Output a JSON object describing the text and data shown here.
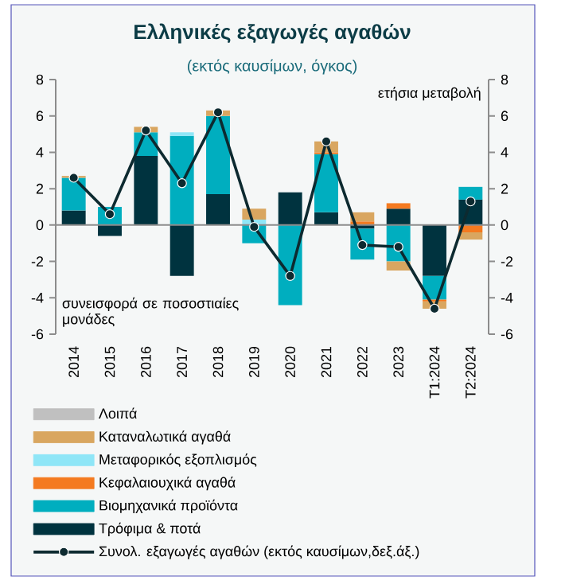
{
  "chart_data": {
    "type": "bar",
    "stacked": true,
    "title": "Ελληνικές εξαγωγές αγαθών",
    "subtitle": "(εκτός καυσίμων, όγκος)",
    "ylabel": "συνεισφορά σε ποσοστιαίες μονάδες",
    "y2label": "ετήσια μεταβολή",
    "categories": [
      "2014",
      "2015",
      "2016",
      "2017",
      "2018",
      "2019",
      "2020",
      "2021",
      "2022",
      "2023",
      "T1:2024",
      "T2:2024"
    ],
    "series": [
      {
        "name": "Τρόφιμα & ποτά",
        "color": "#00333f",
        "values": [
          0.8,
          -0.6,
          3.8,
          -2.8,
          1.7,
          null,
          1.8,
          0.7,
          -0.2,
          0.9,
          -2.8,
          1.4
        ]
      },
      {
        "name": "Βιομηχανικά προϊόντα",
        "color": "#00aebf",
        "values": [
          1.8,
          1.0,
          1.3,
          4.9,
          4.3,
          -1.0,
          -4.4,
          3.2,
          -1.7,
          -2.0,
          -1.3,
          0.7
        ]
      },
      {
        "name": "Κεφαλαιουχικά αγαθά",
        "color": "#f47a20",
        "values": [
          null,
          null,
          null,
          null,
          null,
          null,
          null,
          0.1,
          0.2,
          0.3,
          -0.1,
          -0.4
        ]
      },
      {
        "name": "Μεταφορικός εξοπλισμός",
        "color": "#8fe6f7",
        "values": [
          null,
          null,
          null,
          0.2,
          null,
          0.3,
          null,
          null,
          null,
          null,
          null,
          null
        ]
      },
      {
        "name": "Καταναλωτικά αγαθά",
        "color": "#d9a660",
        "values": [
          0.1,
          null,
          0.3,
          null,
          0.3,
          0.6,
          null,
          0.6,
          0.5,
          -0.5,
          -0.4,
          -0.4
        ]
      },
      {
        "name": "Λοιπά",
        "color": "#c0c0c0",
        "values": [
          null,
          null,
          null,
          null,
          null,
          null,
          null,
          null,
          null,
          null,
          null,
          null
        ]
      },
      {
        "name": "Συνολ. εξαγωγές αγαθών (εκτός καυσίμων,δεξ.άξ.)",
        "type": "line",
        "axis": "y2",
        "color": "#0d2a30",
        "values": [
          2.6,
          0.6,
          5.2,
          2.3,
          6.2,
          -0.1,
          -2.8,
          4.6,
          -1.1,
          -1.2,
          -4.6,
          1.3
        ]
      }
    ],
    "ylim": [
      -6,
      8
    ],
    "yticks": [
      -6,
      -4,
      -2,
      0,
      2,
      4,
      6,
      8
    ],
    "y2lim": [
      -6,
      8
    ],
    "y2ticks": [
      -6,
      -4,
      -2,
      0,
      2,
      4,
      6,
      8
    ],
    "legend": "bottom",
    "marker": "circle"
  }
}
